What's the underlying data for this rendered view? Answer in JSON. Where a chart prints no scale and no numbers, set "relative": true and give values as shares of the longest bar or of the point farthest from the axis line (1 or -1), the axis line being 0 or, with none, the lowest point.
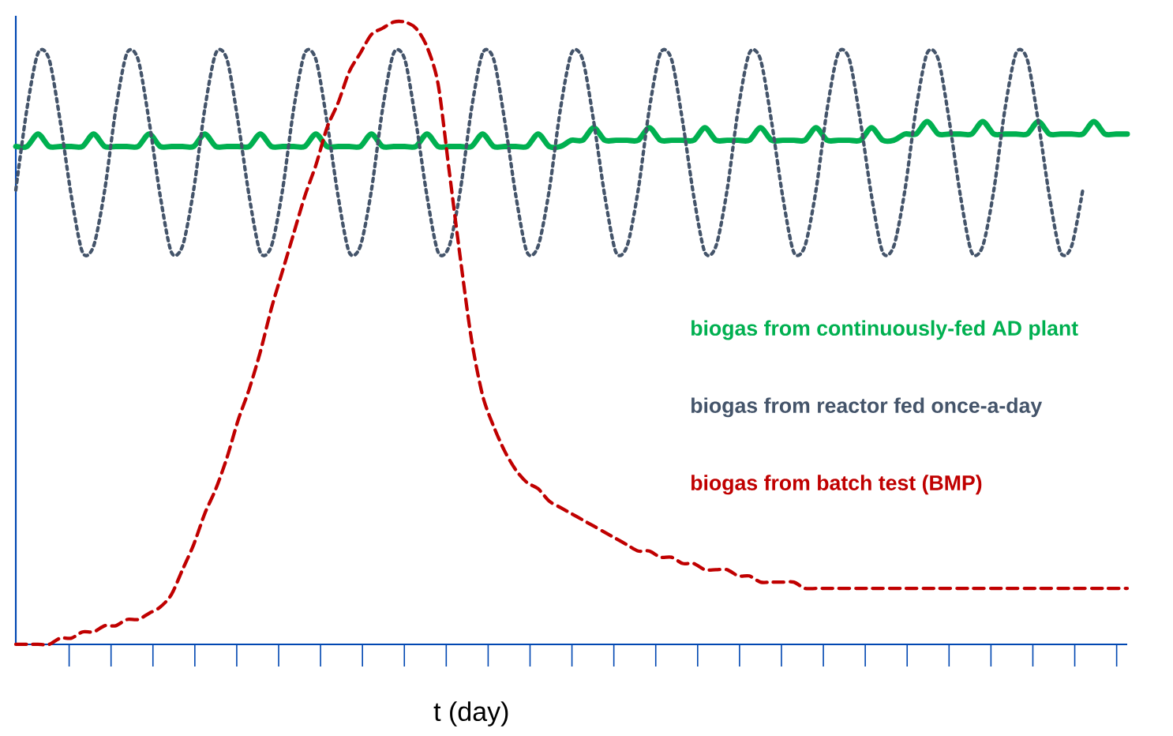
{
  "chart_data": {
    "type": "line",
    "xlabel": "t (day)",
    "relative": true,
    "legend": "right",
    "categories": [
      null,
      null,
      null,
      null,
      null,
      null,
      null,
      null,
      null,
      null,
      null,
      null,
      null,
      null,
      null,
      null,
      null,
      null,
      null,
      null,
      null,
      null,
      null,
      null,
      null,
      null,
      null,
      null,
      null,
      null,
      null,
      null,
      null,
      null,
      null,
      null,
      null,
      null,
      null,
      null,
      null,
      null,
      null,
      null,
      null,
      null,
      null,
      null,
      null,
      null,
      null,
      null,
      null,
      null,
      null,
      null,
      null,
      null,
      null,
      null,
      null,
      null,
      null,
      null,
      null,
      null,
      null,
      null,
      null,
      null,
      null,
      null,
      null,
      null,
      null,
      null,
      null,
      null,
      null,
      null,
      null,
      null,
      null,
      null,
      null,
      null,
      null,
      null,
      null,
      null,
      null,
      null,
      null,
      null,
      null,
      null,
      null,
      null,
      null,
      null,
      null
    ],
    "series": [
      {
        "name": "biogas from continuously-fed AD plant",
        "color": "#00b050",
        "line_style": "solid",
        "values": [
          0.8,
          0.8,
          0.82,
          0.8,
          0.8,
          0.8,
          0.8,
          0.82,
          0.8,
          0.8,
          0.8,
          0.8,
          0.82,
          0.8,
          0.8,
          0.8,
          0.8,
          0.82,
          0.8,
          0.8,
          0.8,
          0.8,
          0.82,
          0.8,
          0.8,
          0.8,
          0.8,
          0.82,
          0.8,
          0.8,
          0.8,
          0.8,
          0.82,
          0.8,
          0.8,
          0.8,
          0.8,
          0.82,
          0.8,
          0.8,
          0.8,
          0.8,
          0.82,
          0.8,
          0.8,
          0.8,
          0.8,
          0.82,
          0.8,
          0.8,
          0.81,
          0.81,
          0.83,
          0.81,
          0.81,
          0.81,
          0.81,
          0.83,
          0.81,
          0.81,
          0.81,
          0.81,
          0.83,
          0.81,
          0.81,
          0.81,
          0.81,
          0.83,
          0.81,
          0.81,
          0.81,
          0.81,
          0.83,
          0.81,
          0.81,
          0.81,
          0.81,
          0.83,
          0.81,
          0.81,
          0.82,
          0.82,
          0.84,
          0.82,
          0.82,
          0.82,
          0.82,
          0.84,
          0.82,
          0.82,
          0.82,
          0.82,
          0.84,
          0.82,
          0.82,
          0.82,
          0.82,
          0.84,
          0.82,
          0.82,
          0.82
        ]
      },
      {
        "name": "biogas from reactor fed once-a-day",
        "color": "#44546a",
        "line_style": "dotted",
        "values": [
          0.73,
          0.86,
          0.95,
          0.94,
          0.84,
          0.72,
          0.63,
          0.64,
          0.73,
          0.86,
          0.95,
          0.94,
          0.84,
          0.72,
          0.63,
          0.64,
          0.73,
          0.86,
          0.95,
          0.94,
          0.84,
          0.72,
          0.63,
          0.64,
          0.73,
          0.86,
          0.95,
          0.94,
          0.84,
          0.72,
          0.63,
          0.64,
          0.73,
          0.86,
          0.95,
          0.94,
          0.84,
          0.72,
          0.63,
          0.64,
          0.73,
          0.86,
          0.95,
          0.94,
          0.84,
          0.72,
          0.63,
          0.64,
          0.73,
          0.86,
          0.95,
          0.94,
          0.84,
          0.72,
          0.63,
          0.64,
          0.73,
          0.86,
          0.95,
          0.94,
          0.84,
          0.72,
          0.63,
          0.64,
          0.73,
          0.86,
          0.95,
          0.94,
          0.84,
          0.72,
          0.63,
          0.64,
          0.73,
          0.86,
          0.95,
          0.94,
          0.84,
          0.72,
          0.63,
          0.64,
          0.73,
          0.86,
          0.95,
          0.94,
          0.84,
          0.72,
          0.63,
          0.64,
          0.73,
          0.86,
          0.95,
          0.94,
          0.84,
          0.72,
          0.63,
          0.64,
          0.73,
          null,
          null,
          null,
          null
        ]
      },
      {
        "name": "biogas from batch test (BMP)",
        "color": "#c00000",
        "line_style": "dashed",
        "values": [
          0.0,
          0.0,
          0.0,
          0.0,
          0.01,
          0.01,
          0.02,
          0.02,
          0.03,
          0.03,
          0.04,
          0.04,
          0.05,
          0.06,
          0.08,
          0.12,
          0.16,
          0.21,
          0.25,
          0.3,
          0.36,
          0.41,
          0.47,
          0.54,
          0.6,
          0.66,
          0.72,
          0.77,
          0.83,
          0.87,
          0.92,
          0.95,
          0.98,
          0.99,
          1.0,
          1.0,
          0.99,
          0.96,
          0.9,
          0.76,
          0.62,
          0.49,
          0.4,
          0.35,
          0.31,
          0.28,
          0.26,
          0.25,
          0.23,
          0.22,
          0.21,
          0.2,
          0.19,
          0.18,
          0.17,
          0.16,
          0.15,
          0.15,
          0.14,
          0.14,
          0.13,
          0.13,
          0.12,
          0.12,
          0.12,
          0.11,
          0.11,
          0.1,
          0.1,
          0.1,
          0.1,
          0.09,
          0.09,
          0.09,
          0.09,
          0.09,
          0.09,
          0.09,
          0.09,
          0.09,
          0.09,
          0.09,
          0.09,
          0.09,
          0.09,
          0.09,
          0.09,
          0.09,
          0.09,
          0.09,
          0.09,
          0.09,
          0.09,
          0.09,
          0.09,
          0.09,
          0.09,
          0.09,
          0.09,
          0.09,
          0.09
        ]
      }
    ]
  }
}
